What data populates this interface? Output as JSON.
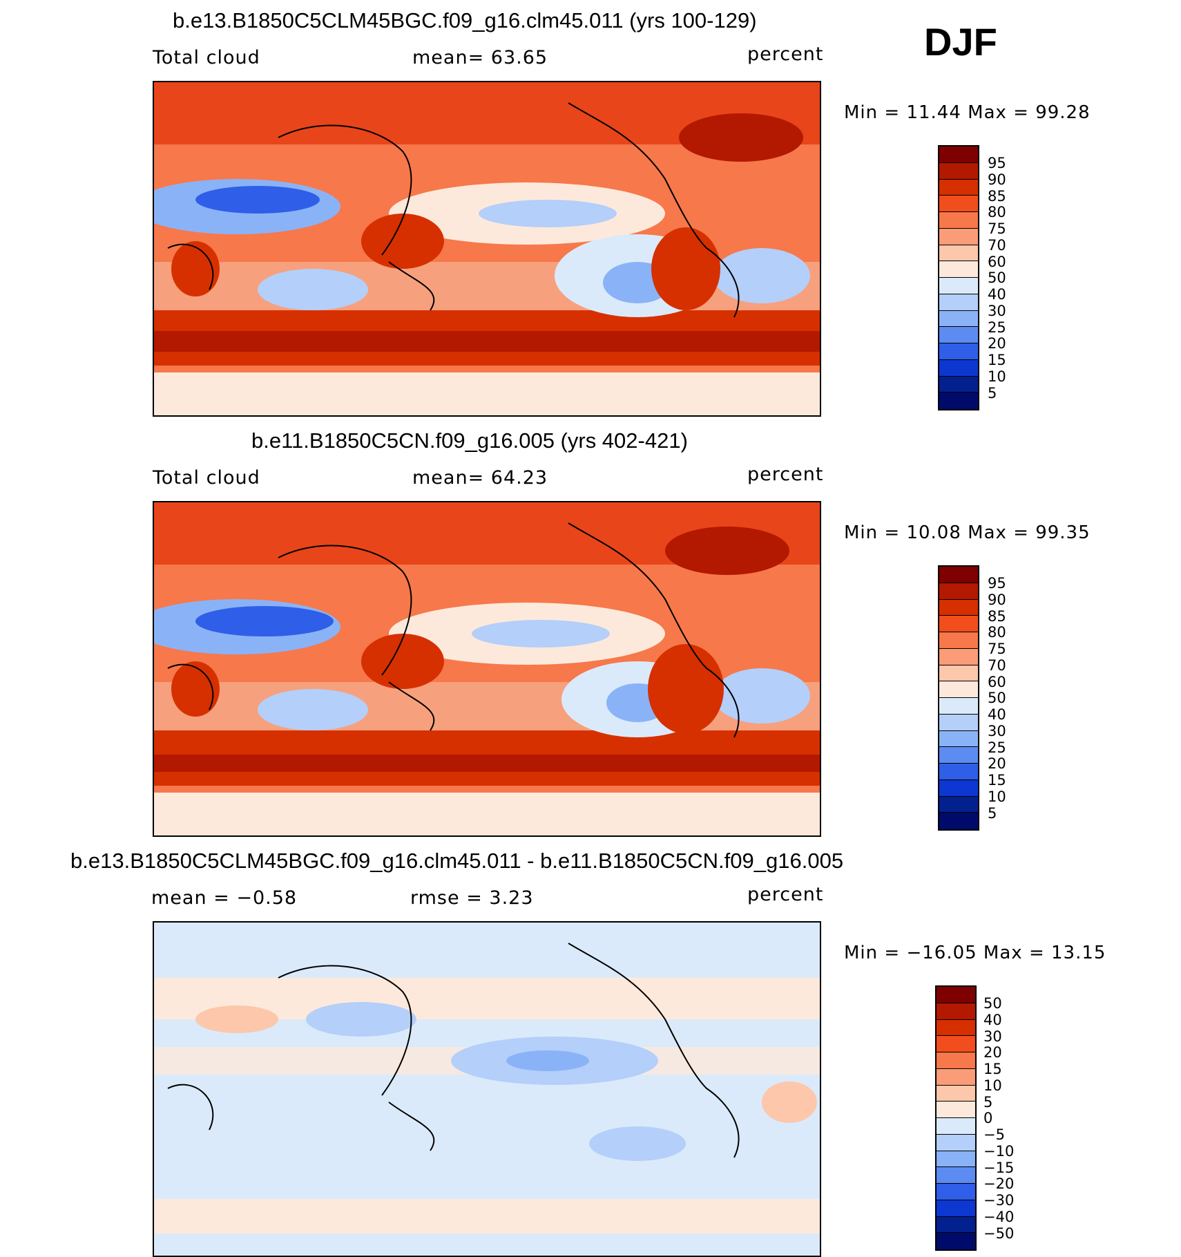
{
  "season": "DJF",
  "panels": [
    {
      "title": "b.e13.B1850C5CLM45BGC.f09_g16.clm45.011 (yrs 100-129)",
      "variable": "Total cloud",
      "stat_line": "mean=   63.65",
      "units": "percent",
      "minmax": "Min =   11.44 Max =   99.28",
      "colorbar_labels": [
        "95",
        "90",
        "85",
        "80",
        "75",
        "70",
        "60",
        "50",
        "40",
        "30",
        "25",
        "20",
        "15",
        "10",
        "5"
      ],
      "colorbar_colors": [
        "#7f0000",
        "#b31800",
        "#d63000",
        "#f24d1c",
        "#f7784a",
        "#fa9c78",
        "#fcc7ab",
        "#fde9dc",
        "#dbeafa",
        "#b3cffa",
        "#8ab3f7",
        "#5c8cf2",
        "#2f5fe8",
        "#0d37d1",
        "#03208f",
        "#000a6b"
      ]
    },
    {
      "title": "b.e11.B1850C5CN.f09_g16.005 (yrs 402-421)",
      "variable": "Total cloud",
      "stat_line": "mean=   64.23",
      "units": "percent",
      "minmax": "Min =   10.08 Max =   99.35",
      "colorbar_labels": [
        "95",
        "90",
        "85",
        "80",
        "75",
        "70",
        "60",
        "50",
        "40",
        "30",
        "25",
        "20",
        "15",
        "10",
        "5"
      ],
      "colorbar_colors": [
        "#7f0000",
        "#b31800",
        "#d63000",
        "#f24d1c",
        "#f7784a",
        "#fa9c78",
        "#fcc7ab",
        "#fde9dc",
        "#dbeafa",
        "#b3cffa",
        "#8ab3f7",
        "#5c8cf2",
        "#2f5fe8",
        "#0d37d1",
        "#03208f",
        "#000a6b"
      ]
    },
    {
      "title": "b.e13.B1850C5CLM45BGC.f09_g16.clm45.011 - b.e11.B1850C5CN.f09_g16.005",
      "mean_label": "mean =  −0.58",
      "stat_line": "rmse =    3.23",
      "units": "percent",
      "minmax": "Min = −16.05 Max =   13.15",
      "colorbar_labels": [
        "50",
        "40",
        "30",
        "20",
        "15",
        "10",
        "5",
        "0",
        "−5",
        "−10",
        "−15",
        "−20",
        "−30",
        "−40",
        "−50"
      ],
      "colorbar_colors": [
        "#7f0000",
        "#b31800",
        "#d63000",
        "#f24d1c",
        "#f7784a",
        "#fa9c78",
        "#fcc7ab",
        "#fde9dc",
        "#dbeafa",
        "#b3cffa",
        "#8ab3f7",
        "#5c8cf2",
        "#2f5fe8",
        "#0d37d1",
        "#03208f",
        "#000a6b"
      ]
    }
  ]
}
